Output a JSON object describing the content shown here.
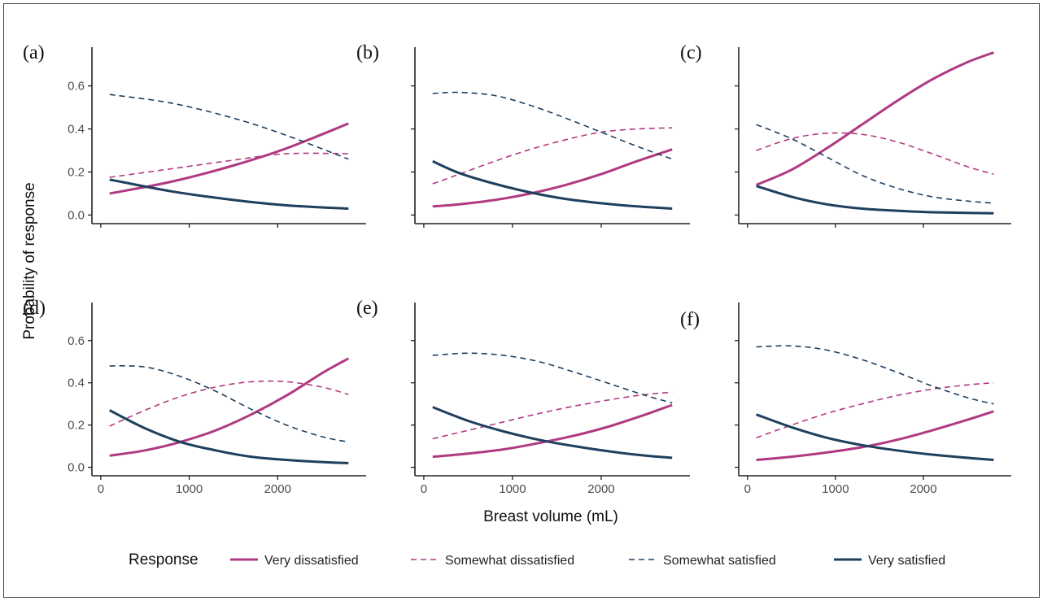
{
  "chart_data": {
    "type": "line",
    "xlabel": "Breast volume (mL)",
    "ylabel": "Probability of response",
    "xlim": [
      -100,
      3000
    ],
    "ylim": [
      -0.04,
      0.78
    ],
    "xticks": [
      0,
      1000,
      2000
    ],
    "xtick_labels": [
      "0",
      "1000",
      "2000"
    ],
    "yticks": [
      0.0,
      0.2,
      0.4,
      0.6
    ],
    "ytick_labels": [
      "0.0",
      "0.2",
      "0.4",
      "0.6"
    ],
    "grid": false,
    "legend": {
      "title": "Response",
      "position": "bottom",
      "entries": [
        {
          "label": "Very dissatisfied",
          "color": "#b03a82",
          "dash": "solid"
        },
        {
          "label": "Somewhat dissatisfied",
          "color": "#b03a82",
          "dash": "dashed"
        },
        {
          "label": "Somewhat satisfied",
          "color": "#1e3f5e",
          "dash": "dashed"
        },
        {
          "label": "Very satisfied",
          "color": "#1e3f5e",
          "dash": "solid"
        }
      ]
    },
    "panels": [
      {
        "label": "(a)",
        "x": [
          100,
          800,
          1500,
          2100,
          2800
        ],
        "series": [
          {
            "name": "Very dissatisfied",
            "values": [
              0.1,
              0.155,
              0.23,
              0.31,
              0.425
            ]
          },
          {
            "name": "Somewhat dissatisfied",
            "values": [
              0.175,
              0.215,
              0.255,
              0.285,
              0.285
            ]
          },
          {
            "name": "Somewhat satisfied",
            "values": [
              0.56,
              0.52,
              0.45,
              0.37,
              0.26
            ]
          },
          {
            "name": "Very satisfied",
            "values": [
              0.165,
              0.11,
              0.07,
              0.045,
              0.03
            ]
          }
        ]
      },
      {
        "label": "(b)",
        "x": [
          100,
          400,
          800,
          1200,
          1600,
          2000,
          2400,
          2800
        ],
        "series": [
          {
            "name": "Very dissatisfied",
            "values": [
              0.04,
              0.05,
              0.07,
              0.1,
              0.14,
              0.19,
              0.25,
              0.305
            ]
          },
          {
            "name": "Somewhat dissatisfied",
            "values": [
              0.145,
              0.19,
              0.25,
              0.305,
              0.35,
              0.385,
              0.4,
              0.405
            ]
          },
          {
            "name": "Somewhat satisfied",
            "values": [
              0.565,
              0.57,
              0.555,
              0.51,
              0.45,
              0.385,
              0.32,
              0.26
            ]
          },
          {
            "name": "Very satisfied",
            "values": [
              0.25,
              0.195,
              0.145,
              0.105,
              0.075,
              0.055,
              0.04,
              0.03
            ]
          }
        ]
      },
      {
        "label": "(c)",
        "x": [
          100,
          500,
          900,
          1300,
          1700,
          2100,
          2500,
          2800
        ],
        "series": [
          {
            "name": "Very dissatisfied",
            "values": [
              0.14,
              0.21,
              0.31,
              0.42,
              0.53,
              0.63,
              0.71,
              0.755
            ]
          },
          {
            "name": "Somewhat dissatisfied",
            "values": [
              0.3,
              0.355,
              0.38,
              0.375,
              0.34,
              0.285,
              0.225,
              0.19
            ]
          },
          {
            "name": "Somewhat satisfied",
            "values": [
              0.42,
              0.355,
              0.27,
              0.185,
              0.125,
              0.085,
              0.065,
              0.055
            ]
          },
          {
            "name": "Very satisfied",
            "values": [
              0.135,
              0.085,
              0.05,
              0.03,
              0.02,
              0.013,
              0.01,
              0.008
            ]
          }
        ]
      },
      {
        "label": "(d)",
        "x": [
          100,
          500,
          900,
          1300,
          1700,
          2100,
          2500,
          2800
        ],
        "series": [
          {
            "name": "Very dissatisfied",
            "values": [
              0.055,
              0.08,
              0.12,
              0.175,
              0.25,
              0.34,
              0.445,
              0.515
            ]
          },
          {
            "name": "Somewhat dissatisfied",
            "values": [
              0.195,
              0.27,
              0.335,
              0.38,
              0.405,
              0.405,
              0.38,
              0.345
            ]
          },
          {
            "name": "Somewhat satisfied",
            "values": [
              0.48,
              0.475,
              0.43,
              0.36,
              0.275,
              0.2,
              0.145,
              0.12
            ]
          },
          {
            "name": "Very satisfied",
            "values": [
              0.27,
              0.185,
              0.12,
              0.08,
              0.05,
              0.035,
              0.025,
              0.02
            ]
          }
        ]
      },
      {
        "label": "(e)",
        "x": [
          100,
          500,
          900,
          1300,
          1700,
          2100,
          2500,
          2800
        ],
        "series": [
          {
            "name": "Very dissatisfied",
            "values": [
              0.05,
              0.065,
              0.085,
              0.115,
              0.15,
              0.195,
              0.25,
              0.295
            ]
          },
          {
            "name": "Somewhat dissatisfied",
            "values": [
              0.135,
              0.175,
              0.215,
              0.255,
              0.29,
              0.32,
              0.345,
              0.355
            ]
          },
          {
            "name": "Somewhat satisfied",
            "values": [
              0.53,
              0.54,
              0.53,
              0.5,
              0.45,
              0.395,
              0.34,
              0.305
            ]
          },
          {
            "name": "Very satisfied",
            "values": [
              0.285,
              0.22,
              0.17,
              0.13,
              0.1,
              0.075,
              0.055,
              0.045
            ]
          }
        ]
      },
      {
        "label": "(f)",
        "x": [
          100,
          500,
          900,
          1300,
          1700,
          2100,
          2500,
          2800
        ],
        "series": [
          {
            "name": "Very dissatisfied",
            "values": [
              0.035,
              0.05,
              0.07,
              0.095,
              0.13,
              0.175,
              0.225,
              0.265
            ]
          },
          {
            "name": "Somewhat dissatisfied",
            "values": [
              0.14,
              0.2,
              0.255,
              0.3,
              0.34,
              0.37,
              0.39,
              0.4
            ]
          },
          {
            "name": "Somewhat satisfied",
            "values": [
              0.57,
              0.575,
              0.555,
              0.51,
              0.45,
              0.385,
              0.33,
              0.3
            ]
          },
          {
            "name": "Very satisfied",
            "values": [
              0.25,
              0.19,
              0.14,
              0.105,
              0.08,
              0.06,
              0.045,
              0.035
            ]
          }
        ]
      }
    ]
  }
}
